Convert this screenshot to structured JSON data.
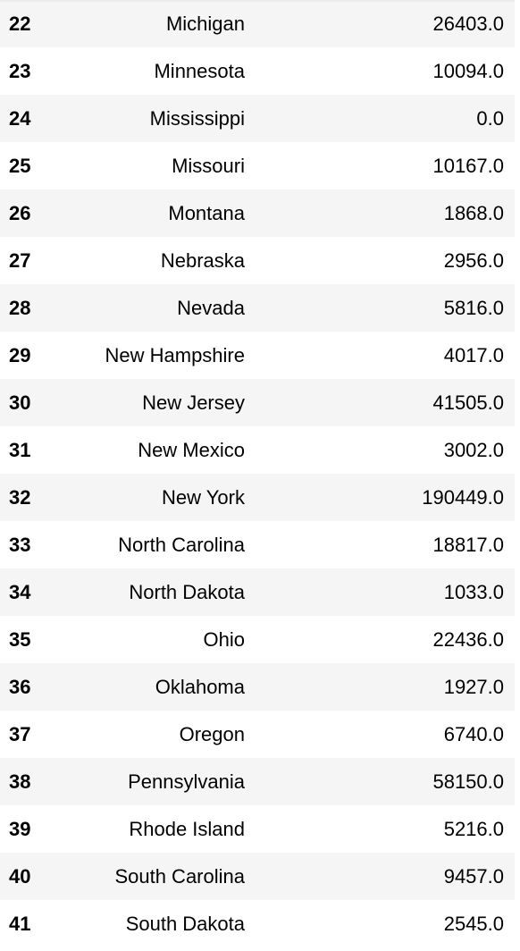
{
  "table": {
    "rows": [
      {
        "index": "22",
        "state": "Michigan",
        "value": "26403.0"
      },
      {
        "index": "23",
        "state": "Minnesota",
        "value": "10094.0"
      },
      {
        "index": "24",
        "state": "Mississippi",
        "value": "0.0"
      },
      {
        "index": "25",
        "state": "Missouri",
        "value": "10167.0"
      },
      {
        "index": "26",
        "state": "Montana",
        "value": "1868.0"
      },
      {
        "index": "27",
        "state": "Nebraska",
        "value": "2956.0"
      },
      {
        "index": "28",
        "state": "Nevada",
        "value": "5816.0"
      },
      {
        "index": "29",
        "state": "New Hampshire",
        "value": "4017.0"
      },
      {
        "index": "30",
        "state": "New Jersey",
        "value": "41505.0"
      },
      {
        "index": "31",
        "state": "New Mexico",
        "value": "3002.0"
      },
      {
        "index": "32",
        "state": "New York",
        "value": "190449.0"
      },
      {
        "index": "33",
        "state": "North Carolina",
        "value": "18817.0"
      },
      {
        "index": "34",
        "state": "North Dakota",
        "value": "1033.0"
      },
      {
        "index": "35",
        "state": "Ohio",
        "value": "22436.0"
      },
      {
        "index": "36",
        "state": "Oklahoma",
        "value": "1927.0"
      },
      {
        "index": "37",
        "state": "Oregon",
        "value": "6740.0"
      },
      {
        "index": "38",
        "state": "Pennsylvania",
        "value": "58150.0"
      },
      {
        "index": "39",
        "state": "Rhode Island",
        "value": "5216.0"
      },
      {
        "index": "40",
        "state": "South Carolina",
        "value": "9457.0"
      },
      {
        "index": "41",
        "state": "South Dakota",
        "value": "2545.0"
      }
    ]
  }
}
